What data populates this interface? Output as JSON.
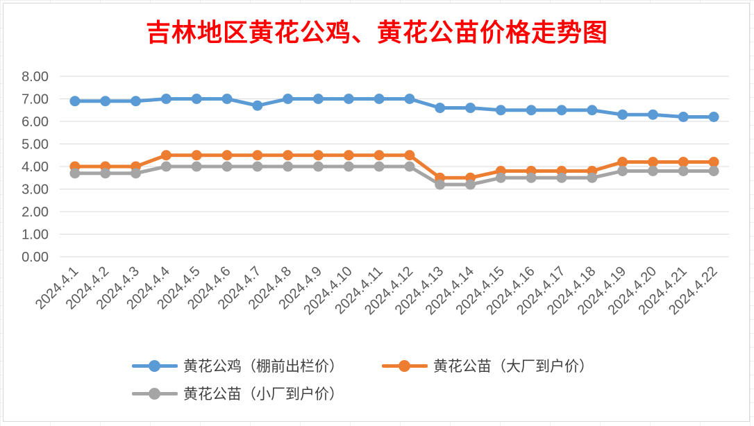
{
  "chart_data": {
    "type": "line",
    "title": "吉林地区黄花公鸡、黄花公苗价格走势图",
    "xlabel": "",
    "ylabel": "",
    "ylim": [
      0,
      8
    ],
    "yticks": [
      "0.00",
      "1.00",
      "2.00",
      "3.00",
      "4.00",
      "5.00",
      "6.00",
      "7.00",
      "8.00"
    ],
    "grid": true,
    "legend_position": "bottom",
    "categories": [
      "2024.4.1",
      "2024.4.2",
      "2024.4.3",
      "2024.4.4",
      "2024.4.5",
      "2024.4.6",
      "2024.4.7",
      "2024.4.8",
      "2024.4.9",
      "2024.4.10",
      "2024.4.11",
      "2024.4.12",
      "2024.4.13",
      "2024.4.14",
      "2024.4.15",
      "2024.4.16",
      "2024.4.17",
      "2024.4.18",
      "2024.4.19",
      "2024.4.20",
      "2024.4.21",
      "2024.4.22"
    ],
    "series": [
      {
        "name": "黄花公鸡（棚前出栏价）",
        "color": "#5b9bd5",
        "values": [
          6.9,
          6.9,
          6.9,
          7.0,
          7.0,
          7.0,
          6.7,
          7.0,
          7.0,
          7.0,
          7.0,
          7.0,
          6.6,
          6.6,
          6.5,
          6.5,
          6.5,
          6.5,
          6.3,
          6.3,
          6.2,
          6.2
        ]
      },
      {
        "name": "黄花公苗（大厂到户价）",
        "color": "#ed7d31",
        "values": [
          4.0,
          4.0,
          4.0,
          4.5,
          4.5,
          4.5,
          4.5,
          4.5,
          4.5,
          4.5,
          4.5,
          4.5,
          3.5,
          3.5,
          3.8,
          3.8,
          3.8,
          3.8,
          4.2,
          4.2,
          4.2,
          4.2
        ]
      },
      {
        "name": "黄花公苗（小厂到户价）",
        "color": "#a5a5a5",
        "values": [
          3.7,
          3.7,
          3.7,
          4.0,
          4.0,
          4.0,
          4.0,
          4.0,
          4.0,
          4.0,
          4.0,
          4.0,
          3.2,
          3.2,
          3.5,
          3.5,
          3.5,
          3.5,
          3.8,
          3.8,
          3.8,
          3.8
        ]
      }
    ]
  }
}
